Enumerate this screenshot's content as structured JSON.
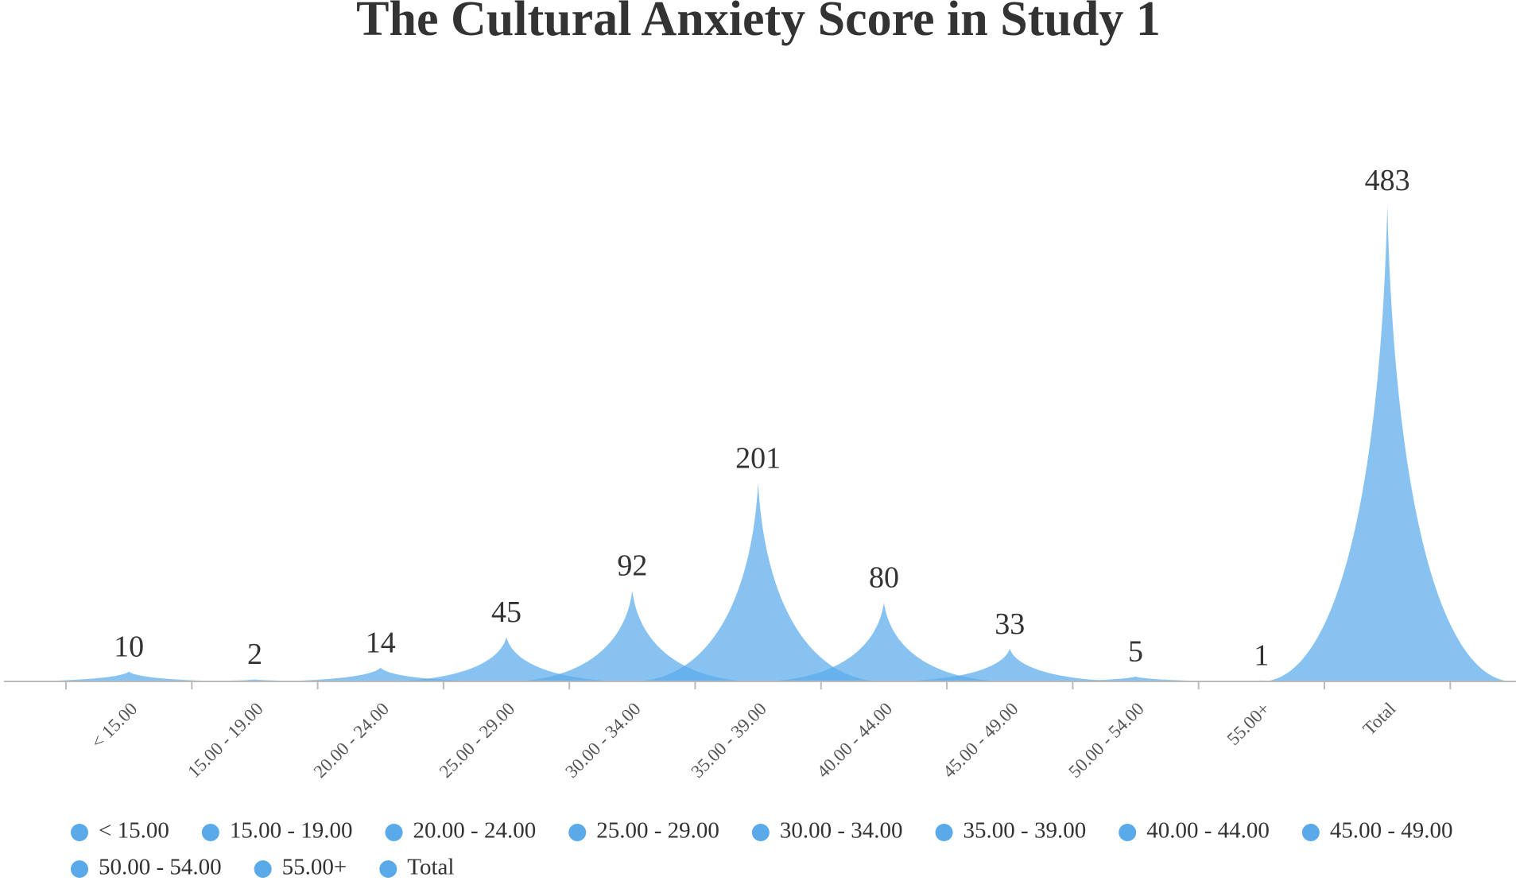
{
  "chart_data": {
    "type": "spike",
    "title": "The Cultural Anxiety Score in Study 1",
    "categories": [
      "< 15.00",
      "15.00 - 19.00",
      "20.00 - 24.00",
      "25.00 - 29.00",
      "30.00 - 34.00",
      "35.00 - 39.00",
      "40.00 - 44.00",
      "45.00 - 49.00",
      "50.00 - 54.00",
      "55.00+",
      "Total"
    ],
    "values": [
      10,
      2,
      14,
      45,
      92,
      201,
      80,
      33,
      5,
      1,
      483
    ],
    "color": "#5aaaea",
    "ylim": [
      0,
      500
    ],
    "legend": "bottom"
  }
}
